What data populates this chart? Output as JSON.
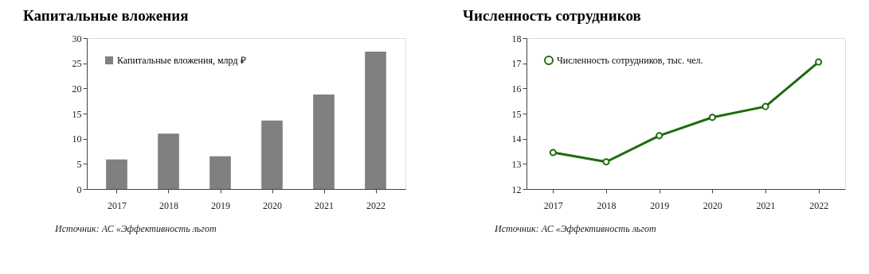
{
  "chart_data": [
    {
      "type": "bar",
      "title": "Капитальные вложения",
      "categories": [
        "2017",
        "2018",
        "2019",
        "2020",
        "2021",
        "2022"
      ],
      "series": [
        {
          "name": "Капитальные вложения, млрд ₽",
          "color": "#808080",
          "values": [
            5.9,
            11,
            6.5,
            13.6,
            18.8,
            27.3
          ]
        }
      ],
      "ylim": [
        0,
        30
      ],
      "yticks": [
        0,
        5,
        10,
        15,
        20,
        25,
        30
      ],
      "grid": false,
      "legend": "top left",
      "annotations": [
        "Источник: АС «Эффективность льгот"
      ]
    },
    {
      "type": "line",
      "title": "Численность сотрудников",
      "categories": [
        "2017",
        "2018",
        "2019",
        "2020",
        "2021",
        "2022"
      ],
      "series": [
        {
          "name": "Численность сотрудников, тыс. чел.",
          "color": "#1e6b0c",
          "values": [
            13.45,
            13.08,
            14.12,
            14.85,
            15.28,
            17.05
          ]
        }
      ],
      "ylim": [
        12,
        18
      ],
      "yticks": [
        12,
        13,
        14,
        15,
        16,
        17,
        18
      ],
      "grid": false,
      "legend": "top left",
      "marker": "circle",
      "line_style": "solid",
      "annotations": [
        "Источник: АС «Эффективность льгот"
      ]
    }
  ]
}
